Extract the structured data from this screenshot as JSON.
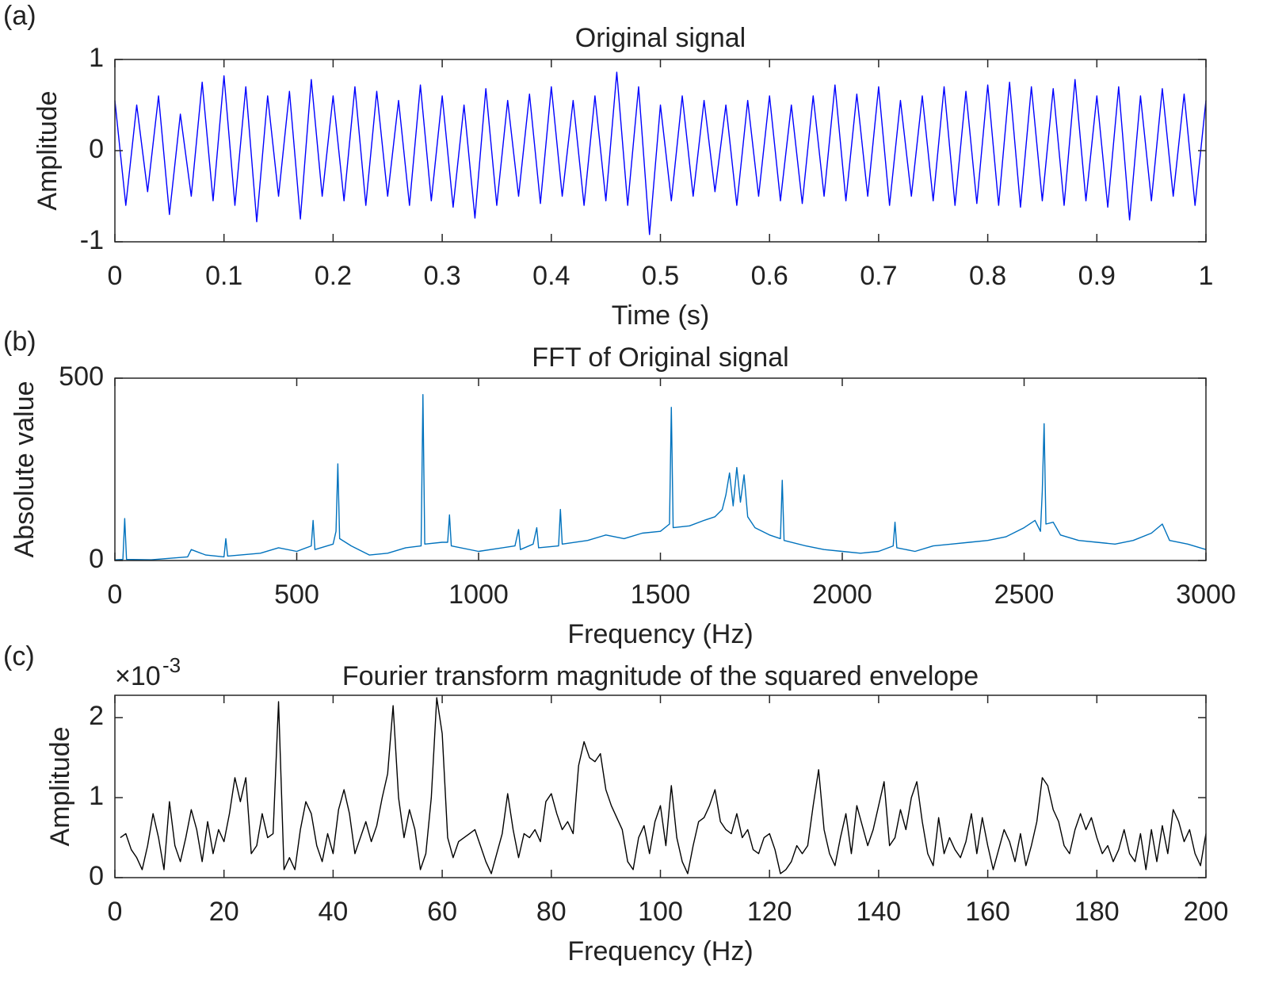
{
  "chart_data": [
    {
      "type": "line",
      "panel_label": "(a)",
      "title": "Original signal",
      "x_label": "Time (s)",
      "y_label": "Amplitude",
      "color": "#0000ff",
      "xlim": [
        0,
        1
      ],
      "xticks": [
        0,
        0.1,
        0.2,
        0.3,
        0.4,
        0.5,
        0.6,
        0.7,
        0.8,
        0.9,
        1
      ],
      "ylim": [
        -1,
        1
      ],
      "yticks": [
        -1,
        0,
        1
      ],
      "x": [
        0,
        0.01,
        0.02,
        0.03,
        0.04,
        0.05,
        0.06,
        0.07,
        0.08,
        0.09,
        0.1,
        0.11,
        0.12,
        0.13,
        0.14,
        0.15,
        0.16,
        0.17,
        0.18,
        0.19,
        0.2,
        0.21,
        0.22,
        0.23,
        0.24,
        0.25,
        0.26,
        0.27,
        0.28,
        0.29,
        0.3,
        0.31,
        0.32,
        0.33,
        0.34,
        0.35,
        0.36,
        0.37,
        0.38,
        0.39,
        0.4,
        0.41,
        0.42,
        0.43,
        0.44,
        0.45,
        0.46,
        0.47,
        0.48,
        0.49,
        0.5,
        0.51,
        0.52,
        0.53,
        0.54,
        0.55,
        0.56,
        0.57,
        0.58,
        0.59,
        0.6,
        0.61,
        0.62,
        0.63,
        0.64,
        0.65,
        0.66,
        0.67,
        0.68,
        0.69,
        0.7,
        0.71,
        0.72,
        0.73,
        0.74,
        0.75,
        0.76,
        0.77,
        0.78,
        0.79,
        0.8,
        0.81,
        0.82,
        0.83,
        0.84,
        0.85,
        0.86,
        0.87,
        0.88,
        0.89,
        0.9,
        0.91,
        0.92,
        0.93,
        0.94,
        0.95,
        0.96,
        0.97,
        0.98,
        0.99,
        1
      ],
      "values": [
        0.55,
        -0.6,
        0.5,
        -0.45,
        0.6,
        -0.7,
        0.4,
        -0.5,
        0.75,
        -0.55,
        0.82,
        -0.6,
        0.7,
        -0.78,
        0.6,
        -0.5,
        0.65,
        -0.75,
        0.78,
        -0.5,
        0.6,
        -0.55,
        0.7,
        -0.6,
        0.65,
        -0.5,
        0.55,
        -0.6,
        0.72,
        -0.55,
        0.6,
        -0.62,
        0.5,
        -0.74,
        0.68,
        -0.6,
        0.55,
        -0.5,
        0.62,
        -0.58,
        0.7,
        -0.5,
        0.55,
        -0.6,
        0.6,
        -0.55,
        0.86,
        -0.6,
        0.7,
        -0.92,
        0.5,
        -0.55,
        0.6,
        -0.5,
        0.55,
        -0.45,
        0.5,
        -0.6,
        0.55,
        -0.5,
        0.6,
        -0.55,
        0.5,
        -0.58,
        0.6,
        -0.5,
        0.72,
        -0.55,
        0.62,
        -0.5,
        0.7,
        -0.6,
        0.55,
        -0.5,
        0.6,
        -0.55,
        0.7,
        -0.6,
        0.65,
        -0.58,
        0.72,
        -0.6,
        0.75,
        -0.62,
        0.7,
        -0.55,
        0.68,
        -0.6,
        0.78,
        -0.55,
        0.6,
        -0.62,
        0.7,
        -0.76,
        0.6,
        -0.55,
        0.68,
        -0.5,
        0.62,
        -0.6,
        0.55
      ]
    },
    {
      "type": "line",
      "panel_label": "(b)",
      "title": "FFT of Original signal",
      "x_label": "Frequency (Hz)",
      "y_label": "Absolute value",
      "color": "#0072bd",
      "xlim": [
        0,
        3000
      ],
      "xticks": [
        0,
        500,
        1000,
        1500,
        2000,
        2500,
        3000
      ],
      "ylim": [
        0,
        500
      ],
      "yticks": [
        0,
        500
      ],
      "x": [
        0,
        22,
        27,
        32,
        100,
        200,
        210,
        250,
        300,
        305,
        310,
        400,
        450,
        500,
        540,
        545,
        550,
        600,
        608,
        613,
        618,
        650,
        700,
        750,
        800,
        842,
        847,
        852,
        900,
        915,
        920,
        925,
        1000,
        1100,
        1110,
        1115,
        1150,
        1160,
        1165,
        1220,
        1225,
        1230,
        1300,
        1350,
        1400,
        1450,
        1500,
        1525,
        1530,
        1535,
        1580,
        1620,
        1650,
        1670,
        1680,
        1690,
        1700,
        1710,
        1720,
        1730,
        1740,
        1760,
        1800,
        1830,
        1835,
        1840,
        1900,
        1950,
        2000,
        2050,
        2100,
        2140,
        2145,
        2150,
        2200,
        2250,
        2300,
        2350,
        2400,
        2450,
        2500,
        2530,
        2545,
        2550,
        2555,
        2560,
        2580,
        2600,
        2650,
        2700,
        2750,
        2800,
        2850,
        2880,
        2900,
        2950,
        3000
      ],
      "values": [
        2,
        3,
        115,
        3,
        2,
        10,
        30,
        15,
        10,
        60,
        12,
        20,
        35,
        25,
        40,
        110,
        30,
        45,
        80,
        265,
        60,
        40,
        15,
        20,
        35,
        40,
        455,
        45,
        50,
        50,
        125,
        40,
        25,
        40,
        85,
        30,
        45,
        90,
        35,
        40,
        140,
        45,
        55,
        70,
        60,
        75,
        80,
        100,
        420,
        90,
        95,
        110,
        120,
        140,
        180,
        240,
        150,
        255,
        160,
        235,
        120,
        90,
        70,
        60,
        220,
        55,
        40,
        30,
        25,
        20,
        25,
        40,
        105,
        35,
        25,
        40,
        45,
        50,
        55,
        65,
        90,
        110,
        80,
        190,
        375,
        100,
        105,
        70,
        55,
        50,
        45,
        55,
        75,
        100,
        55,
        45,
        30
      ]
    },
    {
      "type": "line",
      "panel_label": "(c)",
      "title": "Fourier transform magnitude of the squared envelope",
      "x_label": "Frequency (Hz)",
      "y_label": "Amplitude",
      "color": "#000000",
      "y_multiplier": {
        "base": "×10",
        "exponent": "-3"
      },
      "xlim": [
        0,
        200
      ],
      "xticks": [
        0,
        20,
        40,
        60,
        80,
        100,
        120,
        140,
        160,
        180,
        200
      ],
      "ylim": [
        0,
        2.28
      ],
      "yticks": [
        0,
        1,
        2
      ],
      "x": [
        1,
        2,
        3,
        4,
        5,
        6,
        7,
        8,
        9,
        10,
        11,
        12,
        13,
        14,
        15,
        16,
        17,
        18,
        19,
        20,
        21,
        22,
        23,
        24,
        25,
        26,
        27,
        28,
        29,
        30,
        31,
        32,
        33,
        34,
        35,
        36,
        37,
        38,
        39,
        40,
        41,
        42,
        43,
        44,
        45,
        46,
        47,
        48,
        49,
        50,
        51,
        52,
        53,
        54,
        55,
        56,
        57,
        58,
        59,
        60,
        61,
        62,
        63,
        64,
        65,
        66,
        67,
        68,
        69,
        70,
        71,
        72,
        73,
        74,
        75,
        76,
        77,
        78,
        79,
        80,
        81,
        82,
        83,
        84,
        85,
        86,
        87,
        88,
        89,
        90,
        91,
        92,
        93,
        94,
        95,
        96,
        97,
        98,
        99,
        100,
        101,
        102,
        103,
        104,
        105,
        106,
        107,
        108,
        109,
        110,
        111,
        112,
        113,
        114,
        115,
        116,
        117,
        118,
        119,
        120,
        121,
        122,
        123,
        124,
        125,
        126,
        127,
        128,
        129,
        130,
        131,
        132,
        133,
        134,
        135,
        136,
        137,
        138,
        139,
        140,
        141,
        142,
        143,
        144,
        145,
        146,
        147,
        148,
        149,
        150,
        151,
        152,
        153,
        154,
        155,
        156,
        157,
        158,
        159,
        160,
        161,
        162,
        163,
        164,
        165,
        166,
        167,
        168,
        169,
        170,
        171,
        172,
        173,
        174,
        175,
        176,
        177,
        178,
        179,
        180,
        181,
        182,
        183,
        184,
        185,
        186,
        187,
        188,
        189,
        190,
        191,
        192,
        193,
        194,
        195,
        196,
        197,
        198,
        199,
        200
      ],
      "values": [
        0.5,
        0.55,
        0.35,
        0.25,
        0.1,
        0.4,
        0.8,
        0.5,
        0.1,
        0.95,
        0.4,
        0.2,
        0.5,
        0.85,
        0.6,
        0.2,
        0.7,
        0.3,
        0.6,
        0.45,
        0.8,
        1.25,
        0.95,
        1.25,
        0.3,
        0.4,
        0.8,
        0.5,
        0.55,
        2.2,
        0.1,
        0.25,
        0.1,
        0.6,
        0.95,
        0.8,
        0.4,
        0.2,
        0.55,
        0.3,
        0.85,
        1.1,
        0.8,
        0.3,
        0.5,
        0.7,
        0.45,
        0.65,
        1.0,
        1.3,
        2.15,
        1.0,
        0.5,
        0.85,
        0.6,
        0.1,
        0.3,
        1.0,
        2.25,
        1.8,
        0.5,
        0.25,
        0.45,
        0.5,
        0.55,
        0.6,
        0.4,
        0.2,
        0.05,
        0.3,
        0.55,
        1.05,
        0.6,
        0.25,
        0.55,
        0.5,
        0.6,
        0.45,
        0.95,
        1.05,
        0.8,
        0.6,
        0.7,
        0.55,
        1.4,
        1.7,
        1.5,
        1.45,
        1.55,
        1.1,
        0.9,
        0.75,
        0.6,
        0.2,
        0.1,
        0.5,
        0.65,
        0.3,
        0.7,
        0.9,
        0.4,
        1.15,
        0.5,
        0.2,
        0.05,
        0.4,
        0.7,
        0.75,
        0.9,
        1.1,
        0.7,
        0.6,
        0.55,
        0.8,
        0.5,
        0.6,
        0.35,
        0.3,
        0.5,
        0.55,
        0.35,
        0.05,
        0.1,
        0.2,
        0.4,
        0.3,
        0.4,
        0.9,
        1.35,
        0.6,
        0.3,
        0.15,
        0.5,
        0.8,
        0.3,
        0.9,
        0.65,
        0.4,
        0.6,
        0.9,
        1.2,
        0.4,
        0.5,
        0.85,
        0.6,
        1.0,
        1.2,
        0.7,
        0.3,
        0.15,
        0.75,
        0.3,
        0.5,
        0.35,
        0.25,
        0.45,
        0.8,
        0.3,
        0.75,
        0.4,
        0.1,
        0.35,
        0.6,
        0.45,
        0.2,
        0.55,
        0.15,
        0.4,
        0.7,
        1.25,
        1.15,
        0.85,
        0.7,
        0.4,
        0.3,
        0.6,
        0.8,
        0.6,
        0.75,
        0.5,
        0.3,
        0.4,
        0.2,
        0.35,
        0.6,
        0.3,
        0.2,
        0.55,
        0.1,
        0.6,
        0.2,
        0.65,
        0.3,
        0.85,
        0.7,
        0.45,
        0.6,
        0.3,
        0.15,
        0.55
      ]
    }
  ]
}
